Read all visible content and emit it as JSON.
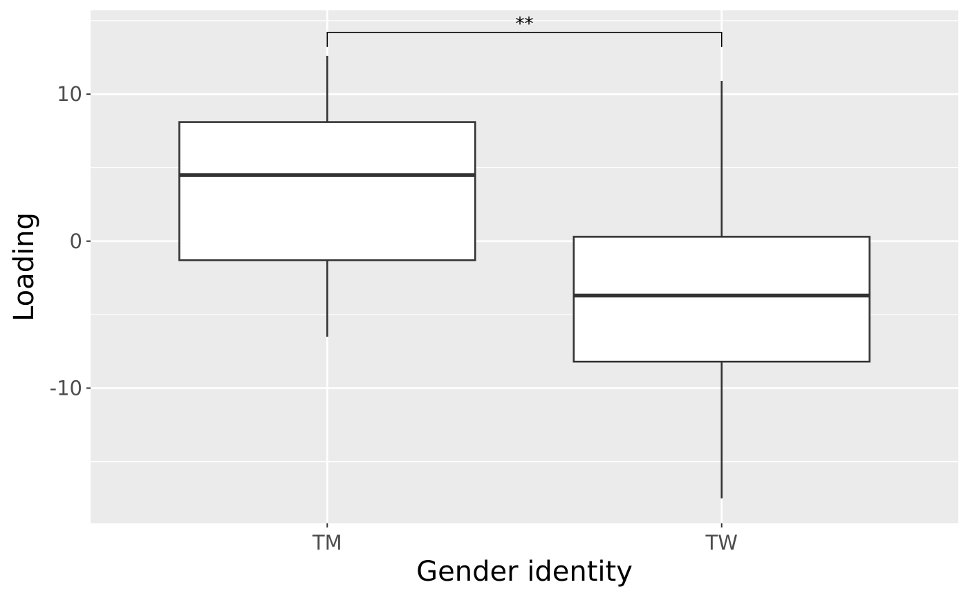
{
  "chart_data": {
    "type": "boxplot",
    "title": "",
    "xlabel": "Gender identity",
    "ylabel": "Loading",
    "categories": [
      "TM",
      "TW"
    ],
    "boxes": [
      {
        "category": "TM",
        "lower_whisker": -6.5,
        "q1": -1.3,
        "median": 4.5,
        "q3": 8.1,
        "upper_whisker": 12.6
      },
      {
        "category": "TW",
        "lower_whisker": -17.5,
        "q1": -8.2,
        "median": -3.7,
        "q3": 0.3,
        "upper_whisker": 10.9
      }
    ],
    "ylim": [
      -19.2,
      15.7
    ],
    "yticks": [
      -10,
      0,
      10
    ],
    "ytick_labels": [
      "-10",
      "0",
      "10"
    ],
    "grid": true,
    "significance": {
      "between": [
        "TM",
        "TW"
      ],
      "label": "**",
      "y": 14.2
    },
    "colors": {
      "panel": "#ebebeb",
      "grid": "#ffffff",
      "box_fill": "#ffffff",
      "box_stroke": "#333333"
    }
  }
}
